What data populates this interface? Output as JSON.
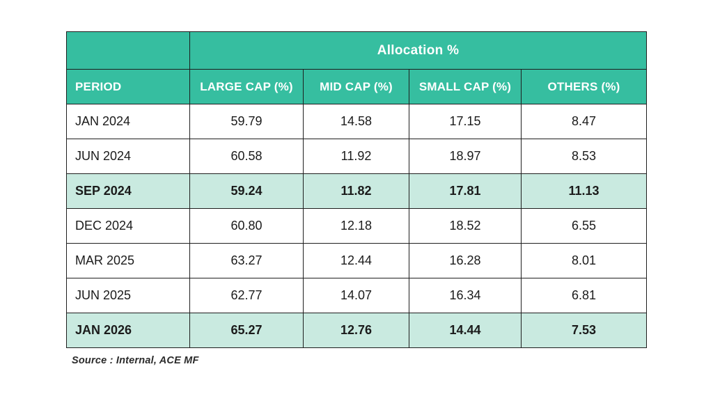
{
  "table": {
    "span_header": "Allocation %",
    "columns": [
      "PERIOD",
      "LARGE CAP (%)",
      "MID CAP (%)",
      "SMALL CAP (%)",
      "OTHERS (%)"
    ],
    "rows": [
      {
        "period": "JAN 2024",
        "values": [
          "59.79",
          "14.58",
          "17.15",
          "8.47"
        ],
        "highlight": false
      },
      {
        "period": "JUN 2024",
        "values": [
          "60.58",
          "11.92",
          "18.97",
          "8.53"
        ],
        "highlight": false
      },
      {
        "period": "SEP 2024",
        "values": [
          "59.24",
          "11.82",
          "17.81",
          "11.13"
        ],
        "highlight": true
      },
      {
        "period": "DEC 2024",
        "values": [
          "60.80",
          "12.18",
          "18.52",
          "6.55"
        ],
        "highlight": false
      },
      {
        "period": "MAR 2025",
        "values": [
          "63.27",
          "12.44",
          "16.28",
          "8.01"
        ],
        "highlight": false
      },
      {
        "period": "JUN 2025",
        "values": [
          "62.77",
          "14.07",
          "16.34",
          "6.81"
        ],
        "highlight": false
      },
      {
        "period": "JAN 2026",
        "values": [
          "65.27",
          "12.76",
          "14.44",
          "7.53"
        ],
        "highlight": true
      }
    ]
  },
  "source_note": "Source : Internal, ACE MF",
  "colors": {
    "header_teal": "#36BEA0",
    "highlight_mint": "#C9EAE0",
    "border": "#1e1e1e",
    "header_text": "#ffffff",
    "body_text": "#1b1b1b"
  },
  "chart_data": {
    "type": "table",
    "title": "Allocation %",
    "columns": [
      "PERIOD",
      "LARGE CAP (%)",
      "MID CAP (%)",
      "SMALL CAP (%)",
      "OTHERS (%)"
    ],
    "rows": [
      [
        "JAN 2024",
        59.79,
        14.58,
        17.15,
        8.47
      ],
      [
        "JUN 2024",
        60.58,
        11.92,
        18.97,
        8.53
      ],
      [
        "SEP 2024",
        59.24,
        11.82,
        17.81,
        11.13
      ],
      [
        "DEC 2024",
        60.8,
        12.18,
        18.52,
        6.55
      ],
      [
        "MAR 2025",
        63.27,
        12.44,
        16.28,
        8.01
      ],
      [
        "JUN 2025",
        62.77,
        14.07,
        16.34,
        6.81
      ],
      [
        "JAN 2026",
        65.27,
        12.76,
        14.44,
        7.53
      ]
    ],
    "highlighted_rows": [
      "SEP 2024",
      "JAN 2026"
    ],
    "source": "Source : Internal, ACE MF"
  }
}
